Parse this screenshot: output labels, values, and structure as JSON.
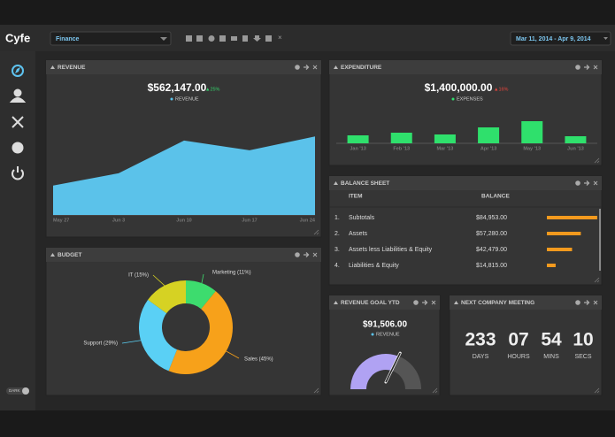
{
  "header": {
    "logo": "Cyfe",
    "dashboard": "Finance",
    "date_range": "Mar 11, 2014 - Apr 9, 2014"
  },
  "sidebar": {
    "theme_toggle": "DARK"
  },
  "widgets": {
    "revenue": {
      "title": "REVENUE",
      "total": "$562,147.00",
      "change": "▲25%",
      "chart_data": {
        "type": "area",
        "categories": [
          "May 27",
          "Jun 3",
          "Jun 10",
          "Jun 17",
          "Jun 24"
        ],
        "series": [
          {
            "name": "REVENUE",
            "color": "#5bc2ea",
            "values": [
              36,
              51,
              91,
              79,
              96
            ]
          }
        ],
        "ylim": [
          0,
          120
        ]
      }
    },
    "expenditure": {
      "title": "EXPENDITURE",
      "total": "$1,400,000.00",
      "change": "▲16%",
      "chart_data": {
        "type": "bar",
        "categories": [
          "Jan '13",
          "Feb '13",
          "Mar '13",
          "Apr '13",
          "May '13",
          "Jun '13"
        ],
        "series": [
          {
            "name": "EXPENSES",
            "color": "#2fe06c",
            "values": [
              9,
              12,
              10,
              18,
              25,
              8
            ]
          }
        ],
        "ylim": [
          0,
          30
        ]
      }
    },
    "balance_sheet": {
      "title": "BALANCE SHEET",
      "columns": [
        "ITEM",
        "BALANCE"
      ],
      "color": "#f39a1e",
      "xlim": [
        0,
        100000
      ],
      "rows": [
        {
          "index": "1.",
          "item": "Subtotals",
          "balance": "$84,953.00",
          "value": 84953
        },
        {
          "index": "2.",
          "item": "Assets",
          "balance": "$57,280.00",
          "value": 57280
        },
        {
          "index": "3.",
          "item": "Assets less Liabilities & Equity",
          "balance": "$42,479.00",
          "value": 42479
        },
        {
          "index": "4.",
          "item": "Liabilities & Equity",
          "balance": "$14,815.00",
          "value": 14815
        }
      ]
    },
    "budget": {
      "title": "BUDGET",
      "chart_data": {
        "type": "donut",
        "categories": [
          "Marketing",
          "Sales",
          "Support",
          "IT"
        ],
        "values": [
          11,
          45,
          29,
          15
        ],
        "value_labels": [
          "Marketing (11%)",
          "Sales (45%)",
          "Support (29%)",
          "IT (15%)"
        ],
        "colors": [
          "#3ddc6e",
          "#f7a11a",
          "#5ad0f5",
          "#d6d223"
        ]
      }
    },
    "revenue_goal": {
      "title": "REVENUE GOAL YTD",
      "total": "$91,506.00",
      "legend": "REVENUE",
      "chart_data": {
        "type": "gauge",
        "value": 62,
        "ylim": [
          0,
          100
        ],
        "color": "#b0a2f3"
      }
    },
    "meeting": {
      "title": "NEXT COMPANY MEETING",
      "countdown": [
        {
          "value": "233",
          "unit": "DAYS"
        },
        {
          "value": "07",
          "unit": "HOURS"
        },
        {
          "value": "54",
          "unit": "MINS"
        },
        {
          "value": "10",
          "unit": "SECS"
        }
      ]
    }
  }
}
